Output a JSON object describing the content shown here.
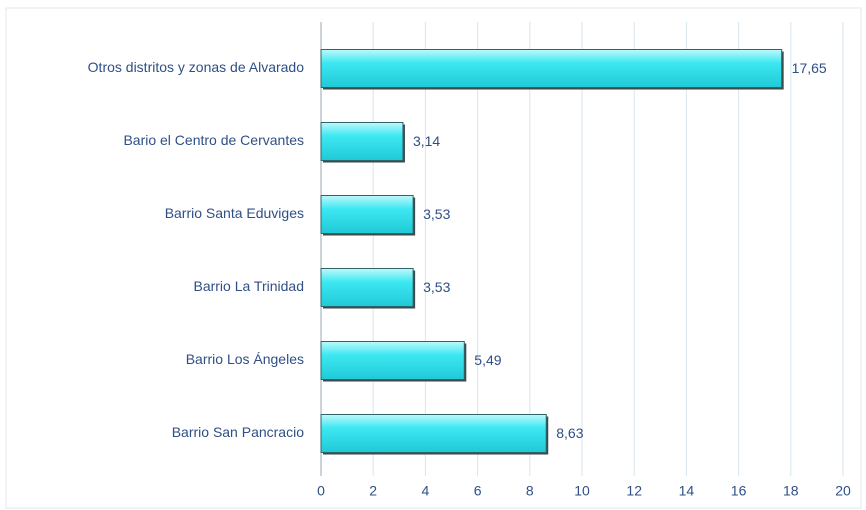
{
  "chart_data": {
    "type": "bar",
    "orientation": "horizontal",
    "categories": [
      "Otros distritos y zonas de Alvarado",
      "Bario el Centro de Cervantes",
      "Barrio Santa Eduviges",
      "Barrio La Trinidad",
      "Barrio Los Ángeles",
      "Barrio San Pancracio"
    ],
    "values": [
      17.65,
      3.14,
      3.53,
      3.53,
      5.49,
      8.63
    ],
    "value_labels": [
      "17,65",
      "3,14",
      "3,53",
      "3,53",
      "5,49",
      "8,63"
    ],
    "color": "#34e4ef",
    "xlim": [
      0,
      20
    ],
    "xticks": [
      0,
      2,
      4,
      6,
      8,
      10,
      12,
      14,
      16,
      18,
      20
    ],
    "grid": true
  }
}
